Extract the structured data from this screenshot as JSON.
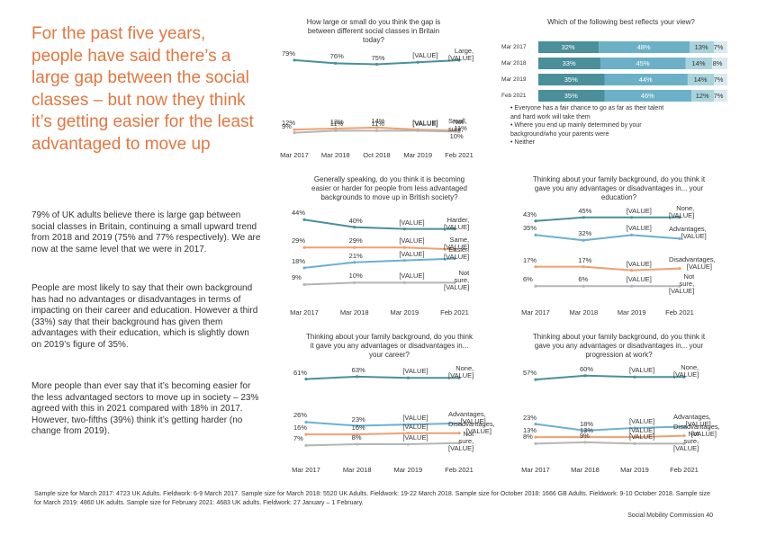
{
  "left_panel": {
    "title": "For the past five years, people have said there’s a large gap between the social classes – but now they think it’s getting easier for the least advantaged to move up",
    "paragraphs": [
      "79% of UK adults believe there is large gap between social classes in Britain, continuing a small upward trend from 2018 and 2019 (75% and 77% respectively). We are now at the same level that we were in 2017.",
      "People are most likely to say that their own background has had no advantages or disadvantages in terms of impacting on their career and education. However a third (33%) say that their background has given them advantages with their education, which is slightly down on 2019’s figure of 35%.",
      "More people than ever say that it’s becoming easier for the less advantaged sectors to move up in society – 23% agreed with this in 2021 compared with 18% in 2017. However, two-fifths (39%) think it’s getting harder (no change from 2019)."
    ]
  },
  "chart_data": [
    {
      "id": "gap",
      "type": "line",
      "title": "How large or small do you think the gap is between different social classes in Britain today?",
      "x": [
        "Mar 2017",
        "Mar 2018",
        "Oct 2018",
        "Mar 2019",
        "Feb 2021"
      ],
      "series": [
        {
          "name": "Large",
          "labels": [
            "79%",
            "76%",
            "75%",
            "[VALUE]",
            "Large, [VALUE]"
          ],
          "values": [
            79,
            76,
            75,
            77,
            79
          ],
          "color": "#4a8f9a"
        },
        {
          "name": "Small",
          "labels": [
            "12%",
            "13%",
            "14%",
            "[VALUE]",
            "Small, 11%"
          ],
          "values": [
            12,
            13,
            14,
            12,
            11
          ],
          "color": "#f0a070"
        },
        {
          "name": "Not sure",
          "labels": [
            "9%",
            "11%",
            "11%",
            "[VALUE]",
            "Not sure, 10%"
          ],
          "values": [
            9,
            11,
            11,
            11,
            10
          ],
          "color": "#b5b5b5"
        }
      ]
    },
    {
      "id": "easier",
      "type": "line",
      "title": "Generally speaking, do you think it is becoming easier or harder for people from less advantaged backgrounds to move up in British society?",
      "x": [
        "Mar 2017",
        "Mar 2018",
        "Mar 2019",
        "Feb 2021"
      ],
      "series": [
        {
          "name": "Harder",
          "labels": [
            "44%",
            "40%",
            "[VALUE]",
            "Harder, [VALUE]"
          ],
          "values": [
            44,
            40,
            39,
            39
          ],
          "color": "#4a8f9a"
        },
        {
          "name": "Same",
          "labels": [
            "29%",
            "29%",
            "[VALUE]",
            "Same, [VALUE]"
          ],
          "values": [
            29,
            29,
            29,
            28
          ],
          "color": "#f0a070"
        },
        {
          "name": "Easier",
          "labels": [
            "18%",
            "21%",
            "[VALUE]",
            "Easier, [VALUE]"
          ],
          "values": [
            18,
            21,
            22,
            23
          ],
          "color": "#6cb0d0"
        },
        {
          "name": "Not sure",
          "labels": [
            "9%",
            "10%",
            "[VALUE]",
            "Not sure, [VALUE]"
          ],
          "values": [
            9,
            10,
            10,
            10
          ],
          "color": "#b5b5b5"
        }
      ]
    },
    {
      "id": "career",
      "type": "line",
      "title": "Thinking about your family background, do you think it gave you any advantages or disadvantages in... your career?",
      "x": [
        "Mar 2017",
        "Mar 2018",
        "Mar 2019",
        "Feb 2021"
      ],
      "series": [
        {
          "name": "None",
          "labels": [
            "61%",
            "63%",
            "[VALUE]",
            "None, [VALUE]"
          ],
          "values": [
            61,
            63,
            62,
            62
          ],
          "color": "#4a8f9a"
        },
        {
          "name": "Advantages",
          "labels": [
            "26%",
            "23%",
            "[VALUE]",
            "Advantages, [VALUE]"
          ],
          "values": [
            26,
            23,
            24,
            25
          ],
          "color": "#6cb0d0"
        },
        {
          "name": "Disadvantages",
          "labels": [
            "16%",
            "16%",
            "[VALUE]",
            "Disadvantages, [VALUE]"
          ],
          "values": [
            16,
            16,
            17,
            17
          ],
          "color": "#f0a070"
        },
        {
          "name": "Not sure",
          "labels": [
            "7%",
            "8%",
            "[VALUE]",
            "Not sure, [VALUE]"
          ],
          "values": [
            7,
            8,
            8,
            9
          ],
          "color": "#b5b5b5"
        }
      ]
    },
    {
      "id": "bars",
      "type": "bar",
      "title": "Which of the following best reflects your view?",
      "categories": [
        "Mar 2017",
        "Mar 2018",
        "Mar 2019",
        "Feb 2021"
      ],
      "series": [
        {
          "name": "Everyone has a fair chance to go as far as their talent and hard work will take them",
          "values": [
            32,
            33,
            35,
            35
          ],
          "color": "#4a8f9a"
        },
        {
          "name": "Where you end up mainly determined by your background/who your parents were",
          "values": [
            48,
            45,
            44,
            46
          ],
          "color": "#6cb0c8"
        },
        {
          "name": "Neither",
          "values": [
            13,
            14,
            14,
            12
          ],
          "color": "#a9d3dc"
        },
        {
          "name": "",
          "values": [
            7,
            8,
            7,
            7
          ],
          "color": "#d8eaee"
        }
      ],
      "legend": [
        "• Everyone has a fair chance to go as far as their talent and hard work will take them",
        "• Where you end up mainly determined by your background/who your parents were",
        "• Neither"
      ]
    },
    {
      "id": "education",
      "type": "line",
      "title": "Thinking about your family background, do you think it gave you any advantages or disadvantages in... your education?",
      "x": [
        "Mar 2017",
        "Mar 2018",
        "Mar 2019",
        "Feb 2021"
      ],
      "series": [
        {
          "name": "None",
          "labels": [
            "43%",
            "45%",
            "[VALUE]",
            "None, [VALUE]"
          ],
          "values": [
            43,
            45,
            45,
            45
          ],
          "color": "#4a8f9a"
        },
        {
          "name": "Advantages",
          "labels": [
            "35%",
            "32%",
            "[VALUE]",
            "Advantages, [VALUE]"
          ],
          "values": [
            35,
            32,
            35,
            33
          ],
          "color": "#6cb0d0"
        },
        {
          "name": "Disadvantages",
          "labels": [
            "17%",
            "17%",
            "[VALUE]",
            "Disadvantages, [VALUE]"
          ],
          "values": [
            17,
            17,
            15,
            16
          ],
          "color": "#f0a070"
        },
        {
          "name": "Not sure",
          "labels": [
            "6%",
            "6%",
            "[VALUE]",
            "Not sure, [VALUE]"
          ],
          "values": [
            6,
            6,
            6,
            6
          ],
          "color": "#b5b5b5"
        }
      ]
    },
    {
      "id": "progression",
      "type": "line",
      "title": "Thinking about your family background, do you think it gave you any advantages or disadvantages in... your progression at work?",
      "x": [
        "Mar 2017",
        "Mar 2018",
        "Mar 2019",
        "Feb 2021"
      ],
      "series": [
        {
          "name": "None",
          "labels": [
            "57%",
            "60%",
            "[VALUE]",
            "None, [VALUE]"
          ],
          "values": [
            57,
            60,
            59,
            59
          ],
          "color": "#4a8f9a"
        },
        {
          "name": "Advantages",
          "labels": [
            "23%",
            "18%",
            "[VALUE]",
            "Advantages, [VALUE]"
          ],
          "values": [
            23,
            18,
            20,
            21
          ],
          "color": "#6cb0d0"
        },
        {
          "name": "Disadvantages",
          "labels": [
            "13%",
            "13%",
            "[VALUE]",
            "Disadvantages, [VALUE]"
          ],
          "values": [
            13,
            13,
            13,
            14
          ],
          "color": "#f0a070"
        },
        {
          "name": "Not sure",
          "labels": [
            "8%",
            "9%",
            "[VALUE]",
            "Not sure, [VALUE]"
          ],
          "values": [
            8,
            9,
            8,
            8
          ],
          "color": "#b5b5b5"
        }
      ]
    }
  ],
  "footnote": "Sample size for March 2017: 4723 UK Adults. Fieldwork: 6-9 March 2017. Sample size for March 2018: 5520 UK Adults. Fieldwork: 19-22 March 2018. Sample size for October 2018: 1666 GB Adults. Fieldwork: 9-10 October 2018. Sample size for March 2019: 4860 UK adults. Sample size for February 2021: 4683 UK adults. Fieldwork: 27 January – 1 February.",
  "footer": "Social Mobility Commission 40"
}
